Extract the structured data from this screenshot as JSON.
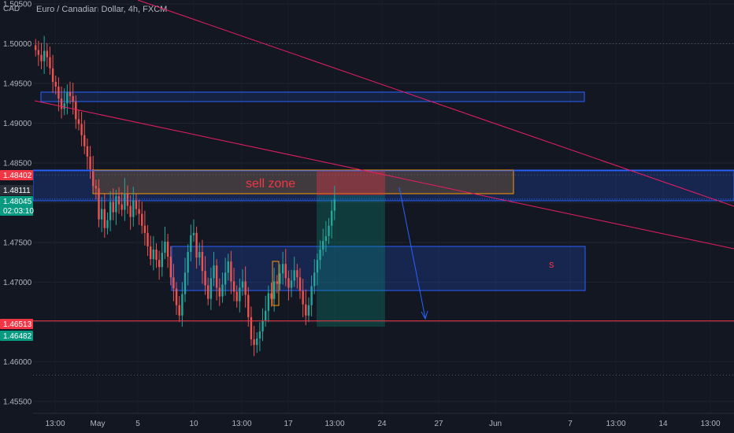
{
  "header": {
    "title": "Euro / Canadian Dollar, 4h, FXCM",
    "currency": "CAD"
  },
  "colors": {
    "background": "#131722",
    "bull": "#26a69a",
    "bear": "#ef5350",
    "resistance_line": "#f23645",
    "trend_line": "#e91e63",
    "zone_border_blue": "#2962ff",
    "zone_border_orange": "#ff9800",
    "text": "#b2b5be"
  },
  "chart_data": {
    "type": "candlestick",
    "title": "Euro / Canadian Dollar, 4h, FXCM",
    "y_axis": {
      "ticks": [
        "1.50500",
        "1.50000",
        "1.49500",
        "1.49000",
        "1.48500",
        "1.48000",
        "1.47500",
        "1.47000",
        "1.46500",
        "1.46000",
        "1.45500"
      ],
      "range": [
        1.4535,
        1.5055
      ]
    },
    "x_axis": {
      "ticks": [
        "13:00",
        "May",
        "5",
        "10",
        "13:00",
        "17",
        "13:00",
        "24",
        "27",
        "Jun",
        "7",
        "13:00",
        "14",
        "13:00"
      ]
    },
    "price_badges": [
      {
        "label": "1.48402",
        "value": 1.48402,
        "color": "#f23645"
      },
      {
        "label": "1.48111",
        "value": 1.48111,
        "color": "#2a2e39"
      },
      {
        "label": "1.48045",
        "value": 1.48045,
        "color": "#089981"
      },
      {
        "label": "02:03:10",
        "value": 1.47955,
        "color": "#089981"
      },
      {
        "label": "1.46513",
        "value": 1.46513,
        "color": "#f23645"
      },
      {
        "label": "1.46482",
        "value": 1.46482,
        "color": "#089981"
      }
    ],
    "annotations": {
      "sell_zone_label": "sell zone",
      "s_label": "s"
    },
    "close_series": [
      1.4992,
      1.4986,
      1.4978,
      1.4991,
      1.4983,
      1.4969,
      1.4952,
      1.4946,
      1.4931,
      1.4918,
      1.4925,
      1.4939,
      1.4934,
      1.4927,
      1.4905,
      1.4899,
      1.4885,
      1.4871,
      1.4858,
      1.4842,
      1.4821,
      1.4818,
      1.4779,
      1.4792,
      1.4768,
      1.4778,
      1.4801,
      1.4788,
      1.4808,
      1.4798,
      1.4791,
      1.4812,
      1.4796,
      1.4782,
      1.4803,
      1.4792,
      1.4786,
      1.4771,
      1.4762,
      1.4745,
      1.4729,
      1.4741,
      1.4728,
      1.4719,
      1.4737,
      1.4751,
      1.4732,
      1.4706,
      1.4692,
      1.4671,
      1.4658,
      1.4685,
      1.4712,
      1.4738,
      1.4759,
      1.4762,
      1.4731,
      1.4738,
      1.4714,
      1.4696,
      1.4679,
      1.4705,
      1.4721,
      1.4693,
      1.4682,
      1.4697,
      1.4712,
      1.4726,
      1.4701,
      1.4688,
      1.4676,
      1.4693,
      1.4701,
      1.4684,
      1.4656,
      1.4628,
      1.4621,
      1.4629,
      1.4638,
      1.4652,
      1.4664,
      1.4686,
      1.4679,
      1.4701,
      1.4698,
      1.4711,
      1.4723,
      1.4705,
      1.4693,
      1.4702,
      1.4715,
      1.4706,
      1.4689,
      1.4672,
      1.4658,
      1.4671,
      1.4695,
      1.4712,
      1.4728,
      1.4741,
      1.4752,
      1.4758,
      1.4771,
      1.479,
      1.4804
    ]
  }
}
